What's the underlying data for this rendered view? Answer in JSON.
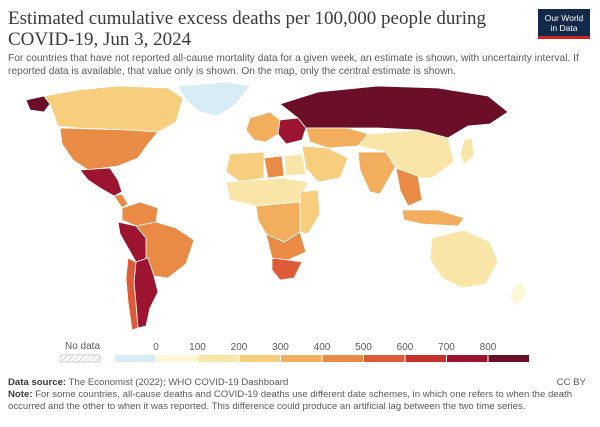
{
  "header": {
    "title": "Estimated cumulative excess deaths per 100,000 people during COVID-19, Jun 3, 2024",
    "subtitle": "For countries that have not reported all-cause mortality data for a given week, an estimate is shown, with uncertainty interval. If reported data is available, that value only is shown. On the map, only the central estimate is shown.",
    "logo_line1": "Our World",
    "logo_line2": "in Data"
  },
  "legend": {
    "no_data_label": "No data",
    "ticks": [
      "0",
      "100",
      "200",
      "300",
      "400",
      "500",
      "600",
      "700",
      "800"
    ],
    "colors": [
      "#d7ecf5",
      "#fdf6d4",
      "#fae5a9",
      "#f7cd7e",
      "#f2ae5c",
      "#ea8b45",
      "#dd5b36",
      "#c6302d",
      "#9d1430",
      "#6b0e27"
    ],
    "no_data_color": "#ffffff"
  },
  "map": {
    "ocean_color": "#ffffff",
    "regions": [
      {
        "name": "Alaska",
        "level": 9
      },
      {
        "name": "Canada",
        "level": 3
      },
      {
        "name": "United States",
        "level": 5
      },
      {
        "name": "Greenland",
        "level": 0
      },
      {
        "name": "Mexico",
        "level": 8
      },
      {
        "name": "Central America",
        "level": 5
      },
      {
        "name": "Colombia / Venezuela",
        "level": 5
      },
      {
        "name": "Peru / Bolivia / Ecuador",
        "level": 8
      },
      {
        "name": "Brazil",
        "level": 5
      },
      {
        "name": "Argentina",
        "level": 8
      },
      {
        "name": "Chile",
        "level": 6
      },
      {
        "name": "Western Europe",
        "level": 4
      },
      {
        "name": "Eastern Europe",
        "level": 8
      },
      {
        "name": "Russia",
        "level": 9
      },
      {
        "name": "Central Asia",
        "level": 4
      },
      {
        "name": "Middle East",
        "level": 3
      },
      {
        "name": "Libya",
        "level": 5
      },
      {
        "name": "Egypt",
        "level": 2
      },
      {
        "name": "North Africa",
        "level": 3
      },
      {
        "name": "Sahel",
        "level": 2
      },
      {
        "name": "Central Africa",
        "level": 4
      },
      {
        "name": "East Africa",
        "level": 3
      },
      {
        "name": "Southern Africa",
        "level": 5
      },
      {
        "name": "South Africa",
        "level": 6
      },
      {
        "name": "India",
        "level": 4
      },
      {
        "name": "China / Mongolia",
        "level": 2
      },
      {
        "name": "Southeast Asia",
        "level": 5
      },
      {
        "name": "Indonesia",
        "level": 4
      },
      {
        "name": "Japan",
        "level": 2
      },
      {
        "name": "Australia",
        "level": 2
      },
      {
        "name": "New Zealand",
        "level": 1
      }
    ]
  },
  "footer": {
    "source_label": "Data source:",
    "source_text": "The Economist (2022); WHO COVID-19 Dashboard",
    "license": "CC BY",
    "note_label": "Note:",
    "note_text": "For some countries, all-cause deaths and COVID-19 deaths use different date schemes, in which one refers to when the death occurred and the other to when it was reported. This difference could produce an artificial lag between the two time series."
  }
}
